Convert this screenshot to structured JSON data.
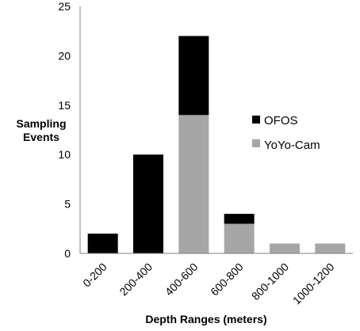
{
  "chart_data": {
    "type": "bar",
    "stacked": true,
    "categories": [
      "0-200",
      "200-400",
      "400-600",
      "600-800",
      "800-1000",
      "1000-1200"
    ],
    "series": [
      {
        "name": "YoYo-Cam",
        "values": [
          0,
          0,
          14,
          3,
          1,
          1
        ],
        "color": "#a6a6a6"
      },
      {
        "name": "OFOS",
        "values": [
          2,
          10,
          8,
          1,
          0,
          0
        ],
        "color": "#000000"
      }
    ],
    "xlabel": "Depth Ranges (meters)",
    "ylabel": [
      "Sampling",
      "Events"
    ],
    "ylim": [
      0,
      25
    ],
    "yticks": [
      0,
      5,
      10,
      15,
      20,
      25
    ],
    "grid": false,
    "legend": {
      "position": "right",
      "entries": [
        "OFOS",
        "YoYo-Cam"
      ]
    }
  }
}
